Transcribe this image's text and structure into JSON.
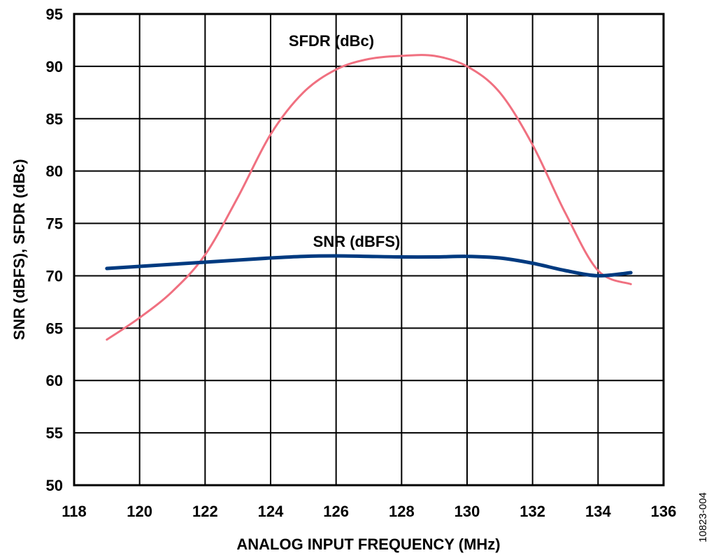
{
  "chart_data": {
    "type": "line",
    "xlabel": "ANALOG INPUT FREQUENCY (MHz)",
    "ylabel": "SNR (dBFS), SFDR (dBc)",
    "xlim": [
      118,
      136
    ],
    "ylim": [
      50,
      95
    ],
    "xticks": [
      118,
      120,
      122,
      124,
      126,
      128,
      130,
      132,
      134,
      136
    ],
    "yticks": [
      50,
      55,
      60,
      65,
      70,
      75,
      80,
      85,
      90,
      95
    ],
    "grid": true,
    "figure_id": "10823-004",
    "series": [
      {
        "name": "SFDR (dBc)",
        "color": "#f07080",
        "x": [
          119,
          120,
          121,
          122,
          123,
          124,
          125,
          126,
          127,
          128,
          129,
          130,
          131,
          132,
          133,
          134,
          135
        ],
        "y": [
          63.9,
          66.0,
          68.5,
          72.0,
          77.5,
          83.5,
          87.5,
          89.7,
          90.7,
          91.0,
          91.0,
          90.0,
          87.5,
          82.5,
          76.0,
          70.5,
          69.2
        ]
      },
      {
        "name": "SNR (dBFS)",
        "color": "#003a80",
        "x": [
          119,
          120,
          121,
          122,
          123,
          124,
          125,
          126,
          127,
          128,
          129,
          130,
          131,
          132,
          133,
          134,
          135
        ],
        "y": [
          70.7,
          70.9,
          71.1,
          71.3,
          71.5,
          71.7,
          71.85,
          71.9,
          71.85,
          71.8,
          71.8,
          71.85,
          71.7,
          71.2,
          70.5,
          70.0,
          70.3
        ]
      }
    ]
  }
}
